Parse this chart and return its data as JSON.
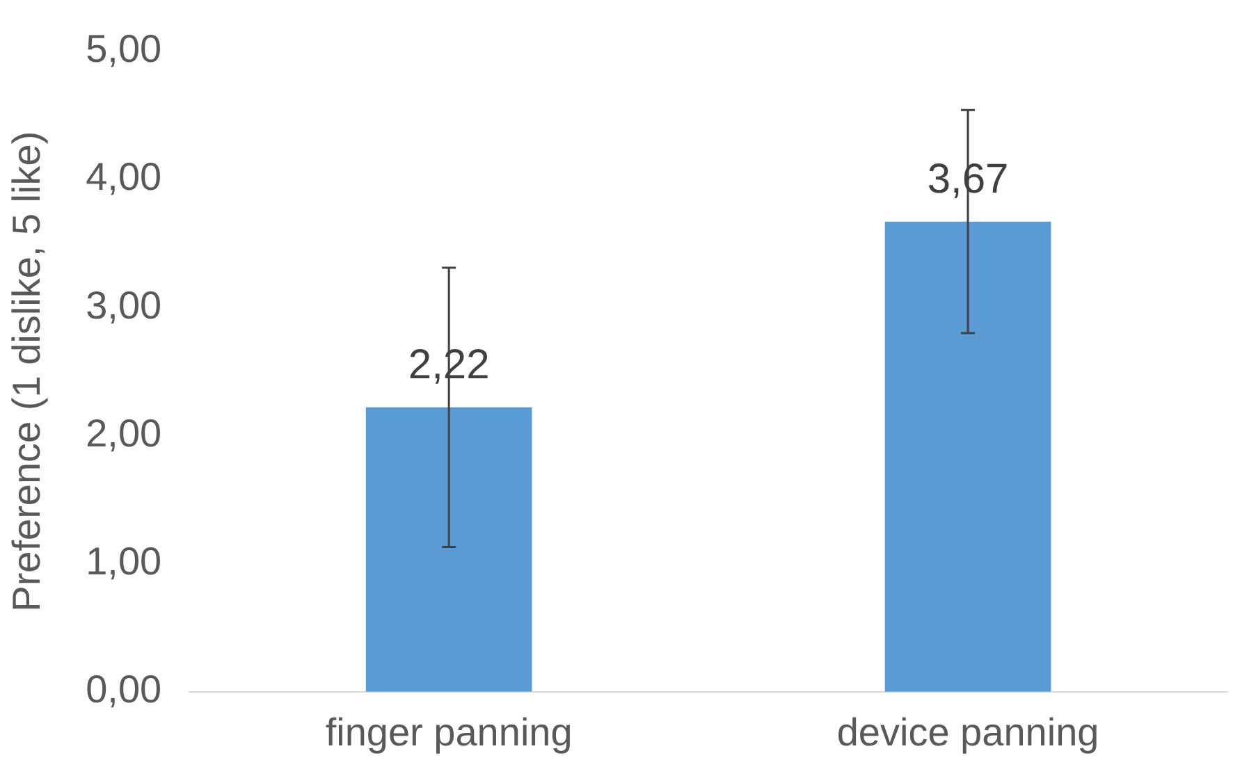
{
  "chart_data": {
    "type": "bar",
    "ylabel": "Preference (1 dislike, 5 like)",
    "categories": [
      "finger panning",
      "device panning"
    ],
    "values": [
      2.22,
      3.67
    ],
    "color": "#5b9bd5",
    "errors": [
      1.09,
      0.87
    ],
    "value_labels": [
      "2,22",
      "3,67"
    ],
    "ylim": [
      0,
      5
    ],
    "yticks": [
      {
        "value": 0,
        "label": "0,00"
      },
      {
        "value": 1,
        "label": "1,00"
      },
      {
        "value": 2,
        "label": "2,00"
      },
      {
        "value": 3,
        "label": "3,00"
      },
      {
        "value": 4,
        "label": "4,00"
      },
      {
        "value": 5,
        "label": "5,00"
      }
    ],
    "grid": false,
    "legend": false
  }
}
